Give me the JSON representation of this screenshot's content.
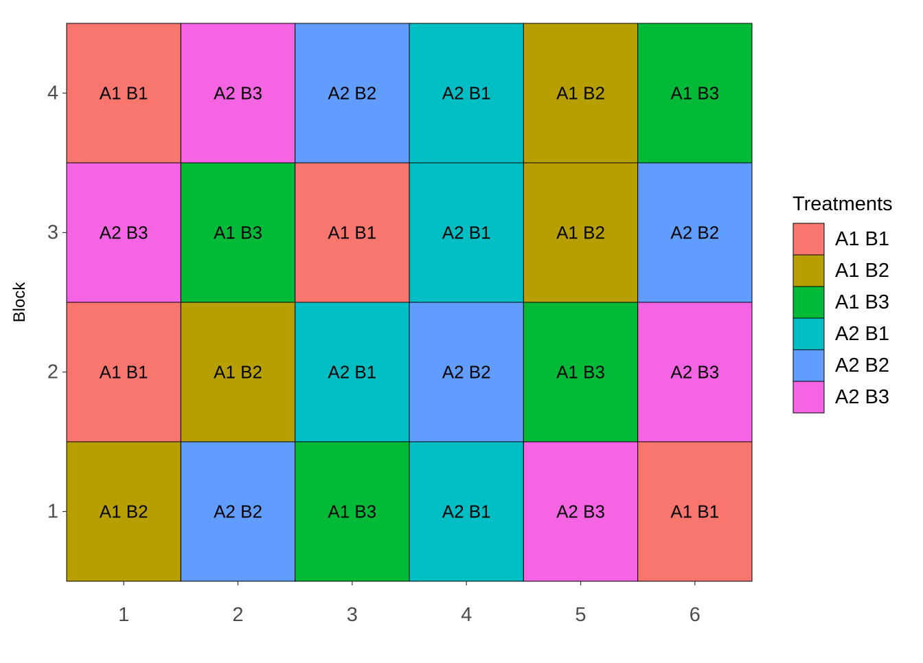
{
  "chart_data": {
    "type": "heatmap",
    "title": "",
    "xlabel": "",
    "ylabel": "Block",
    "x_categories": [
      "1",
      "2",
      "3",
      "4",
      "5",
      "6"
    ],
    "y_categories": [
      "1",
      "2",
      "3",
      "4"
    ],
    "grid": false,
    "legend": {
      "title": "Treatments",
      "position": "right",
      "entries": [
        {
          "label": "A1 B1",
          "color": "#F8766D"
        },
        {
          "label": "A1 B2",
          "color": "#B79F00"
        },
        {
          "label": "A1 B3",
          "color": "#00BA38"
        },
        {
          "label": "A2 B1",
          "color": "#00BFC4"
        },
        {
          "label": "A2 B2",
          "color": "#619CFF"
        },
        {
          "label": "A2 B3",
          "color": "#F564E3"
        }
      ]
    },
    "cells": [
      {
        "block": "4",
        "x": "1",
        "treatment": "A1 B1"
      },
      {
        "block": "4",
        "x": "2",
        "treatment": "A2 B3"
      },
      {
        "block": "4",
        "x": "3",
        "treatment": "A2 B2"
      },
      {
        "block": "4",
        "x": "4",
        "treatment": "A2 B1"
      },
      {
        "block": "4",
        "x": "5",
        "treatment": "A1 B2"
      },
      {
        "block": "4",
        "x": "6",
        "treatment": "A1 B3"
      },
      {
        "block": "3",
        "x": "1",
        "treatment": "A2 B3"
      },
      {
        "block": "3",
        "x": "2",
        "treatment": "A1 B3"
      },
      {
        "block": "3",
        "x": "3",
        "treatment": "A1 B1"
      },
      {
        "block": "3",
        "x": "4",
        "treatment": "A2 B1"
      },
      {
        "block": "3",
        "x": "5",
        "treatment": "A1 B2"
      },
      {
        "block": "3",
        "x": "6",
        "treatment": "A2 B2"
      },
      {
        "block": "2",
        "x": "1",
        "treatment": "A1 B1"
      },
      {
        "block": "2",
        "x": "2",
        "treatment": "A1 B2"
      },
      {
        "block": "2",
        "x": "3",
        "treatment": "A2 B1"
      },
      {
        "block": "2",
        "x": "4",
        "treatment": "A2 B2"
      },
      {
        "block": "2",
        "x": "5",
        "treatment": "A1 B3"
      },
      {
        "block": "2",
        "x": "6",
        "treatment": "A2 B3"
      },
      {
        "block": "1",
        "x": "1",
        "treatment": "A1 B2"
      },
      {
        "block": "1",
        "x": "2",
        "treatment": "A2 B2"
      },
      {
        "block": "1",
        "x": "3",
        "treatment": "A1 B3"
      },
      {
        "block": "1",
        "x": "4",
        "treatment": "A2 B1"
      },
      {
        "block": "1",
        "x": "5",
        "treatment": "A2 B3"
      },
      {
        "block": "1",
        "x": "6",
        "treatment": "A1 B1"
      }
    ]
  }
}
